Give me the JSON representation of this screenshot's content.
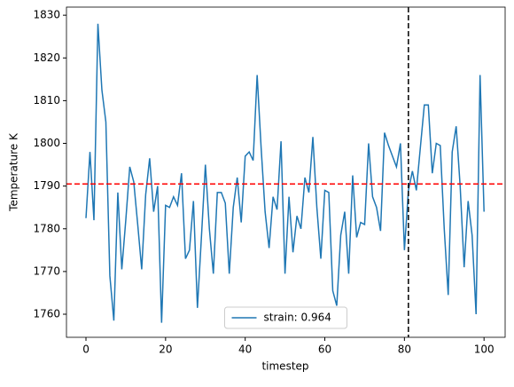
{
  "chart_data": {
    "type": "line",
    "x_label": "timestep",
    "y_label": "Temperature K",
    "x": [
      0,
      1,
      2,
      3,
      4,
      5,
      6,
      7,
      8,
      9,
      10,
      11,
      12,
      13,
      14,
      15,
      16,
      17,
      18,
      19,
      20,
      21,
      22,
      23,
      24,
      25,
      26,
      27,
      28,
      29,
      30,
      31,
      32,
      33,
      34,
      35,
      36,
      37,
      38,
      39,
      40,
      41,
      42,
      43,
      44,
      45,
      46,
      47,
      48,
      49,
      50,
      51,
      52,
      53,
      54,
      55,
      56,
      57,
      58,
      59,
      60,
      61,
      62,
      63,
      64,
      65,
      66,
      67,
      68,
      69,
      70,
      71,
      72,
      73,
      74,
      75,
      76,
      77,
      78,
      79,
      80,
      81,
      82,
      83,
      84,
      85,
      86,
      87,
      88,
      89,
      90,
      91,
      92,
      93,
      94,
      95,
      96,
      97,
      98,
      99,
      100
    ],
    "series": [
      {
        "name": "strain: 0.964",
        "color": "#1f77b4",
        "values": [
          1782.5,
          1798,
          1782,
          1828,
          1812.5,
          1805,
          1769,
          1758.5,
          1788.5,
          1770.5,
          1782,
          1794.5,
          1791,
          1781,
          1770.5,
          1788,
          1796.5,
          1784,
          1790,
          1758,
          1785.5,
          1785,
          1787.5,
          1785.5,
          1793,
          1773,
          1775,
          1786.5,
          1761.5,
          1778,
          1795,
          1780,
          1769.5,
          1788.5,
          1788.5,
          1786,
          1769.5,
          1785,
          1792,
          1781.5,
          1797,
          1798,
          1796,
          1816,
          1799,
          1784,
          1775.5,
          1787.5,
          1784.5,
          1800.5,
          1769.5,
          1787.5,
          1774.5,
          1783,
          1780,
          1792,
          1788.5,
          1801.5,
          1785,
          1773,
          1789,
          1788.5,
          1765.5,
          1762,
          1778.5,
          1784,
          1769.5,
          1792.5,
          1778,
          1781.5,
          1781,
          1800,
          1787.5,
          1785,
          1779.5,
          1802.5,
          1799.5,
          1797,
          1794.5,
          1800,
          1775,
          1789,
          1793.5,
          1789,
          1799,
          1809,
          1809,
          1793,
          1800,
          1799.5,
          1780,
          1764.5,
          1798,
          1804,
          1790,
          1771,
          1786.5,
          1778.5,
          1760,
          1816,
          1784
        ]
      }
    ],
    "xlim": [
      -4.9,
      105.3
    ],
    "ylim": [
      1754.6,
      1831.9
    ],
    "xticks": [
      0,
      20,
      40,
      60,
      80,
      100
    ],
    "yticks": [
      1760,
      1770,
      1780,
      1790,
      1800,
      1810,
      1820,
      1830
    ],
    "hline": 1790.5,
    "hline_color": "#ff0000",
    "vline": 81,
    "vline_color": "#000000",
    "legend": "lower center"
  }
}
